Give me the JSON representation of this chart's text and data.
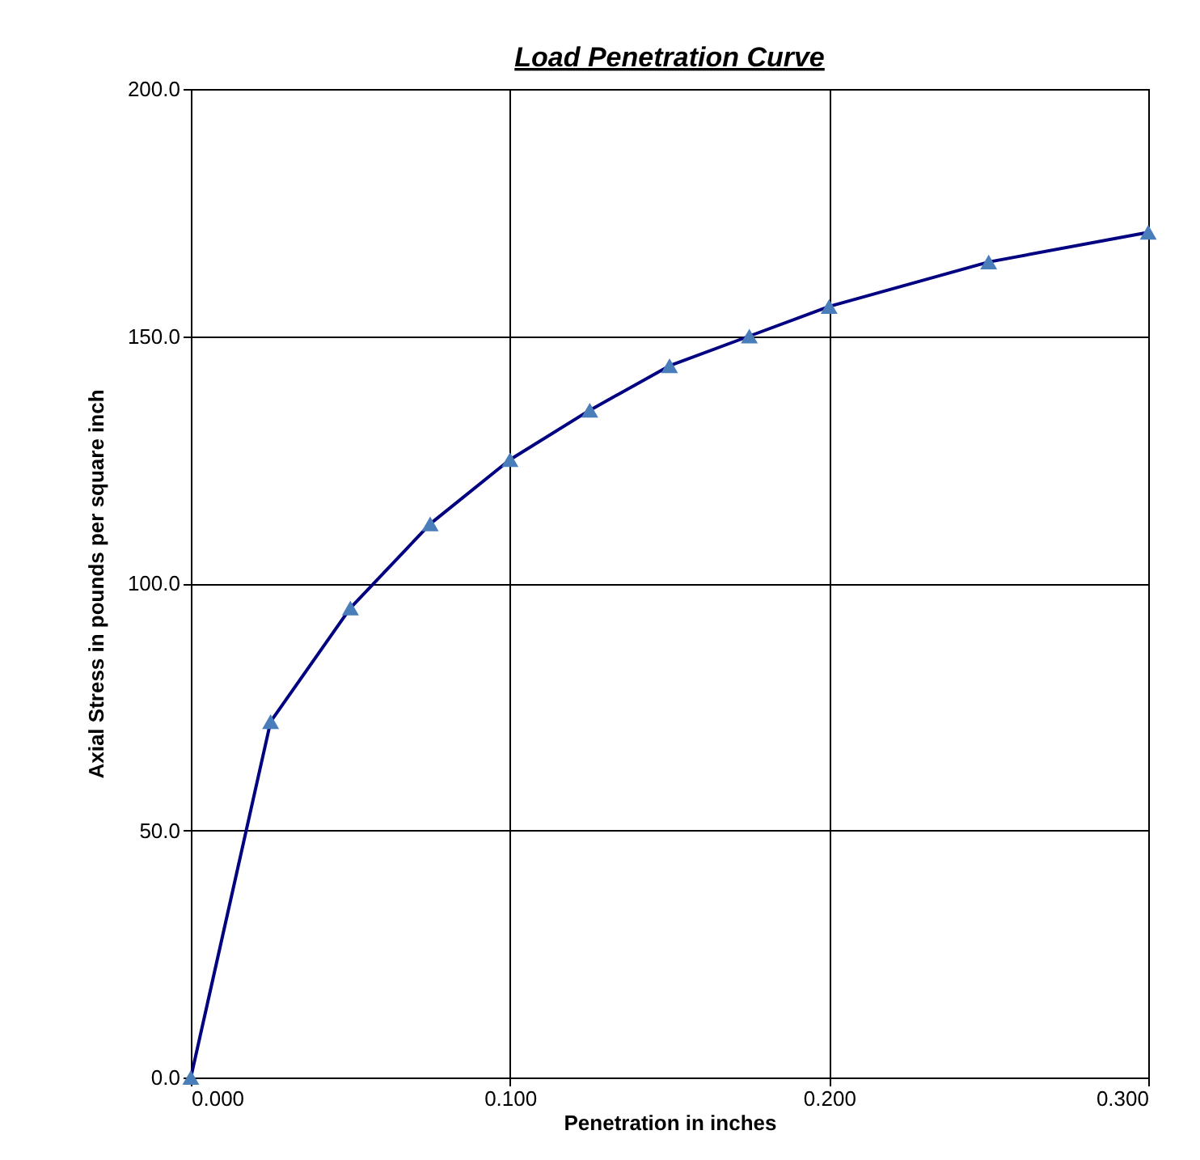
{
  "chart_data": {
    "type": "line",
    "title": "Load Penetration Curve",
    "xlabel": "Penetration in inches",
    "ylabel": "Axial Stress in pounds per square inch",
    "x": [
      0,
      0.025,
      0.05,
      0.075,
      0.1,
      0.125,
      0.15,
      0.175,
      0.2,
      0.25,
      0.3
    ],
    "series": [
      {
        "color": "#000080",
        "values": [
          0,
          72,
          95,
          112,
          125,
          135,
          144,
          150,
          156,
          165,
          171
        ]
      }
    ],
    "xlim": [
      0,
      0.3
    ],
    "xticks": [
      {
        "value": 0,
        "label": "0.000"
      },
      {
        "value": 0.1,
        "label": "0.100"
      },
      {
        "value": 0.2,
        "label": "0.200"
      },
      {
        "value": 0.3,
        "label": "0.300"
      }
    ],
    "ylim": [
      0,
      200
    ],
    "yticks": [
      {
        "value": 0,
        "label": "0.0"
      },
      {
        "value": 50,
        "label": "50.0"
      },
      {
        "value": 100,
        "label": "100.0"
      },
      {
        "value": 150,
        "label": "150.0"
      },
      {
        "value": 200,
        "label": "200.0"
      }
    ],
    "grid": true,
    "marker": "triangle",
    "line_style": "solid"
  }
}
